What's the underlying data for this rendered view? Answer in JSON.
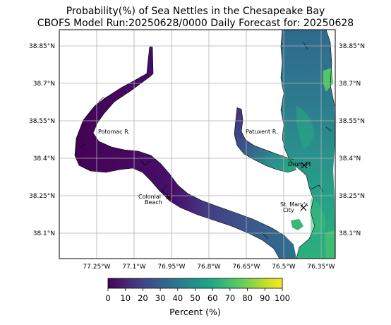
{
  "title_line1": "Probability(%) of Sea Nettles in the Chesapeake Bay",
  "title_line2": "CBOFS Model Run:20250628/0000 Daily Forecast for: 20250628",
  "map": {
    "lon_ticks": [
      "77.25°W",
      "77.1°W",
      "76.95°W",
      "76.8°W",
      "76.65°W",
      "76.5°W",
      "76.35°W"
    ],
    "lat_ticks": [
      "38.85°N",
      "38.7°N",
      "38.55°N",
      "38.4°N",
      "38.25°N",
      "38.1°N"
    ],
    "grid": true,
    "places": {
      "potomac": "Potomac R.",
      "patuxent": "Patuxent R.",
      "drum": "Drum Pt",
      "colonial_1": "Colonial",
      "colonial_2": "Beach",
      "stmarys_1": "St. Mary's",
      "stmarys_2": "City"
    },
    "colormap": "viridis"
  },
  "colorbar": {
    "ticks": [
      "0",
      "10",
      "20",
      "30",
      "40",
      "50",
      "60",
      "70",
      "80",
      "90",
      "100"
    ],
    "label": "Percent (%)",
    "range": [
      0,
      100
    ]
  }
}
